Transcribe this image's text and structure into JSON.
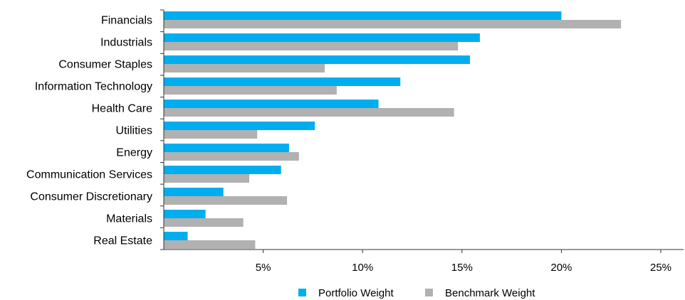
{
  "chart_data": {
    "type": "bar",
    "orientation": "horizontal",
    "categories": [
      "Financials",
      "Industrials",
      "Consumer Staples",
      "Information Technology",
      "Health Care",
      "Utilities",
      "Energy",
      "Communication Services",
      "Consumer Discretionary",
      "Materials",
      "Real Estate"
    ],
    "series": [
      {
        "name": "Portfolio Weight",
        "color": "#00aeef",
        "values": [
          20.0,
          15.9,
          15.4,
          11.9,
          10.8,
          7.6,
          6.3,
          5.9,
          3.0,
          2.1,
          1.2
        ]
      },
      {
        "name": "Benchmark Weight",
        "color": "#b1b1b1",
        "values": [
          23.0,
          14.8,
          8.1,
          8.7,
          14.6,
          4.7,
          6.8,
          4.3,
          6.2,
          4.0,
          4.6
        ]
      }
    ],
    "xlim": [
      0,
      25
    ],
    "xticks": [
      {
        "value": 5,
        "label": "5%"
      },
      {
        "value": 10,
        "label": "10%"
      },
      {
        "value": 15,
        "label": "15%"
      },
      {
        "value": 20,
        "label": "20%"
      },
      {
        "value": 25,
        "label": "25%"
      }
    ],
    "grid": false,
    "legend_position": "bottom-center"
  }
}
